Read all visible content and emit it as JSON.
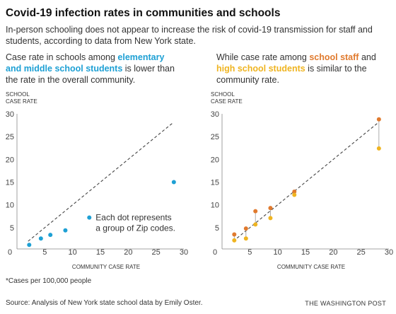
{
  "header": {
    "title": "Covid-19 infection rates in communities and schools",
    "subtitle": "In-person schooling does not appear to increase the risk of covid-19 transmission for staff and students, according to data from New York state."
  },
  "left_text": {
    "before": "Case rate in schools among ",
    "highlight": "elementary and middle school students",
    "after": " is lower than the rate in the overall community."
  },
  "right_text": {
    "before": "While case rate among ",
    "highlight1": "school staff",
    "middle": " and ",
    "highlight2": "high school students",
    "after": " is similar to the community rate."
  },
  "footer": {
    "footnote": "*Cases per 100,000 people",
    "source": "Source: Analysis of New York state school data by Emily Oster.",
    "brand": "THE WASHINGTON POST"
  },
  "colors": {
    "students": "#1ea0d4",
    "staff": "#e07a2e",
    "high_school": "#efb420",
    "axis": "#888888",
    "trend": "#444444"
  },
  "chart_data": [
    {
      "type": "scatter",
      "ylabel_line1": "SCHOOL",
      "ylabel_line2": "CASE RATE",
      "xlabel": "COMMUNITY CASE RATE",
      "xlim": [
        0,
        30
      ],
      "ylim": [
        0,
        30
      ],
      "xticks": [
        0,
        5,
        10,
        15,
        20,
        25,
        30
      ],
      "yticks": [
        5,
        10,
        15,
        20,
        25,
        30
      ],
      "y_equals_x_line": [
        [
          2,
          2
        ],
        [
          28,
          28
        ]
      ],
      "annotation_line1": "Each dot represents",
      "annotation_line2": "a group of Zip codes.",
      "series": [
        {
          "color_key": "students",
          "points": [
            [
              2.2,
              1.2
            ],
            [
              4.3,
              2.6
            ],
            [
              6.0,
              3.4
            ],
            [
              8.7,
              4.4
            ],
            [
              13.0,
              7.2
            ],
            [
              28.2,
              15.0
            ]
          ]
        }
      ]
    },
    {
      "type": "scatter",
      "ylabel_line1": "SCHOOL",
      "ylabel_line2": "CASE RATE",
      "xlabel": "COMMUNITY CASE RATE",
      "xlim": [
        0,
        30
      ],
      "ylim": [
        0,
        30
      ],
      "xticks": [
        0,
        5,
        10,
        15,
        20,
        25,
        30
      ],
      "yticks": [
        5,
        10,
        15,
        20,
        25,
        30
      ],
      "y_equals_x_line": [
        [
          2,
          2
        ],
        [
          28,
          28
        ]
      ],
      "series": [
        {
          "color_key": "staff",
          "points": [
            [
              2.2,
              3.5
            ],
            [
              4.3,
              4.8
            ],
            [
              6.0,
              8.6
            ],
            [
              8.7,
              9.3
            ],
            [
              13.0,
              12.9
            ],
            [
              28.2,
              28.8
            ]
          ]
        },
        {
          "color_key": "high_school",
          "points": [
            [
              2.2,
              2.2
            ],
            [
              4.3,
              2.6
            ],
            [
              6.0,
              5.7
            ],
            [
              8.7,
              7.1
            ],
            [
              13.0,
              12.2
            ],
            [
              28.2,
              22.4
            ]
          ]
        }
      ]
    }
  ]
}
